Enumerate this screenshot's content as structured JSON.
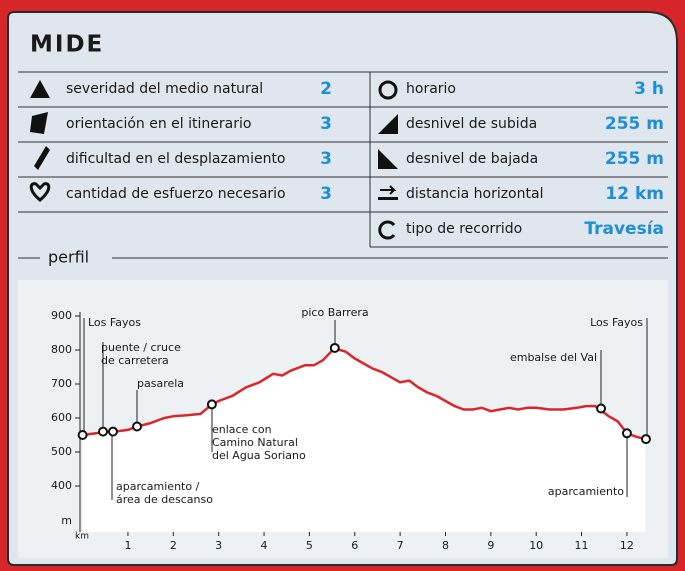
{
  "header": {
    "title": "MIDE"
  },
  "table": {
    "left": [
      {
        "label": "severidad del medio natural",
        "value": "2"
      },
      {
        "label": "orientación en el itinerario",
        "value": "3"
      },
      {
        "label": "dificultad en el desplazamiento",
        "value": "3"
      },
      {
        "label": "cantidad de esfuerzo necesario",
        "value": "3"
      }
    ],
    "right": [
      {
        "label": "horario",
        "value": "3 h"
      },
      {
        "label": "desnivel de subida",
        "value": "255 m"
      },
      {
        "label": "desnivel de bajada",
        "value": "255 m"
      },
      {
        "label": "distancia horizontal",
        "value": "12 km"
      },
      {
        "label": "tipo de recorrido",
        "value": "Travesía"
      }
    ]
  },
  "section_label": "perfil",
  "chart_data": {
    "type": "line",
    "x_label": "km",
    "y_label": "m",
    "color": "#d9262b",
    "xlim": [
      0,
      12.5
    ],
    "xticks": [
      1,
      2,
      3,
      4,
      5,
      6,
      7,
      8,
      9,
      10,
      11,
      12
    ],
    "ylim": [
      300,
      900
    ],
    "yticks": [
      400,
      500,
      600,
      700,
      800,
      900
    ],
    "x": [
      0,
      0.3,
      0.5,
      0.7,
      1,
      1.2,
      1.5,
      1.8,
      2,
      2.3,
      2.6,
      2.85,
      3,
      3.3,
      3.6,
      3.9,
      4.2,
      4.4,
      4.6,
      4.9,
      5.1,
      5.3,
      5.55,
      5.8,
      6,
      6.2,
      6.4,
      6.6,
      6.8,
      7,
      7.2,
      7.4,
      7.6,
      7.8,
      8,
      8.2,
      8.4,
      8.6,
      8.8,
      9,
      9.2,
      9.4,
      9.6,
      9.8,
      10,
      10.3,
      10.6,
      10.9,
      11.1,
      11.3,
      11.4,
      11.6,
      11.8,
      12,
      12.2,
      12.4
    ],
    "values": [
      550,
      555,
      560,
      560,
      565,
      575,
      585,
      600,
      605,
      608,
      612,
      640,
      650,
      665,
      690,
      705,
      730,
      725,
      740,
      755,
      755,
      770,
      805,
      795,
      775,
      760,
      745,
      735,
      720,
      705,
      710,
      690,
      675,
      665,
      650,
      635,
      625,
      625,
      630,
      620,
      625,
      630,
      625,
      630,
      630,
      625,
      625,
      630,
      635,
      635,
      625,
      605,
      590,
      555,
      545,
      538
    ],
    "annotations": [
      {
        "label_lines": [
          "Los Fayos"
        ],
        "x": 0,
        "y": 550
      },
      {
        "label_lines": [
          "puente / cruce",
          "de carretera"
        ],
        "x": 0.45,
        "y": 560
      },
      {
        "label_lines": [
          "aparcamiento /",
          "área de descanso"
        ],
        "x": 0.67,
        "y": 560
      },
      {
        "label_lines": [
          "pasarela"
        ],
        "x": 1.2,
        "y": 575
      },
      {
        "label_lines": [
          "enlace con",
          "Camino Natural",
          "del Agua Soriano"
        ],
        "x": 2.85,
        "y": 640
      },
      {
        "label_lines": [
          "pico Barrera"
        ],
        "x": 5.56,
        "y": 806
      },
      {
        "label_lines": [
          "embalse del Val"
        ],
        "x": 11.43,
        "y": 628
      },
      {
        "label_lines": [
          "aparcamiento"
        ],
        "x": 12,
        "y": 555
      },
      {
        "label_lines": [
          "Los Fayos"
        ],
        "x": 12.42,
        "y": 538
      }
    ]
  }
}
